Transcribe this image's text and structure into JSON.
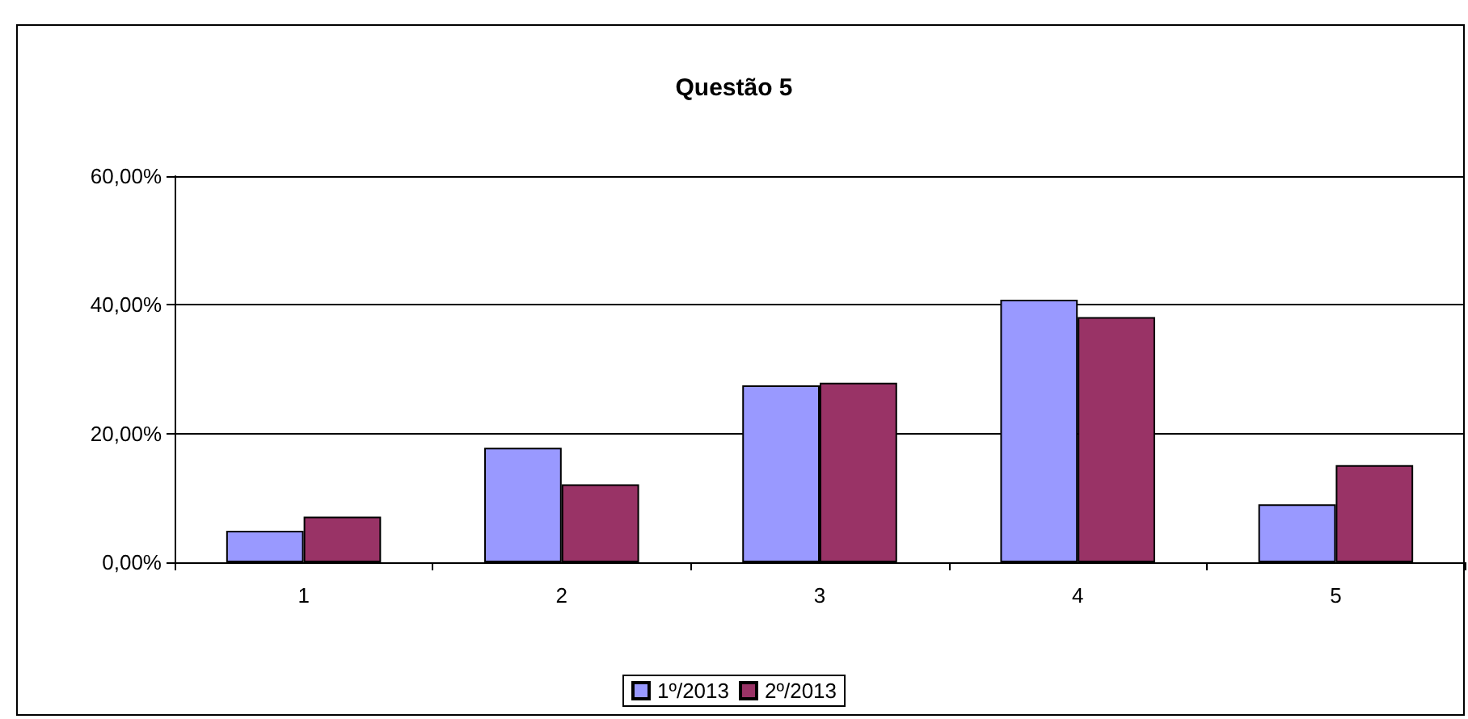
{
  "chart_data": {
    "type": "bar",
    "title": "Questão 5",
    "categories": [
      "1",
      "2",
      "3",
      "4",
      "5"
    ],
    "series": [
      {
        "name": "1º/2013",
        "color": "#9999ff",
        "values": [
          4.9,
          17.8,
          27.5,
          40.8,
          9.0
        ]
      },
      {
        "name": "2º/2013",
        "color": "#993366",
        "values": [
          7.1,
          12.1,
          27.9,
          38.1,
          15.1
        ]
      }
    ],
    "ylim": [
      0,
      60
    ],
    "yticks": [
      {
        "value": 0,
        "label": "0,00%"
      },
      {
        "value": 20,
        "label": "20,00%"
      },
      {
        "value": 40,
        "label": "40,00%"
      },
      {
        "value": 60,
        "label": "60,00%"
      }
    ],
    "grid": "y",
    "legend": "bottom"
  }
}
